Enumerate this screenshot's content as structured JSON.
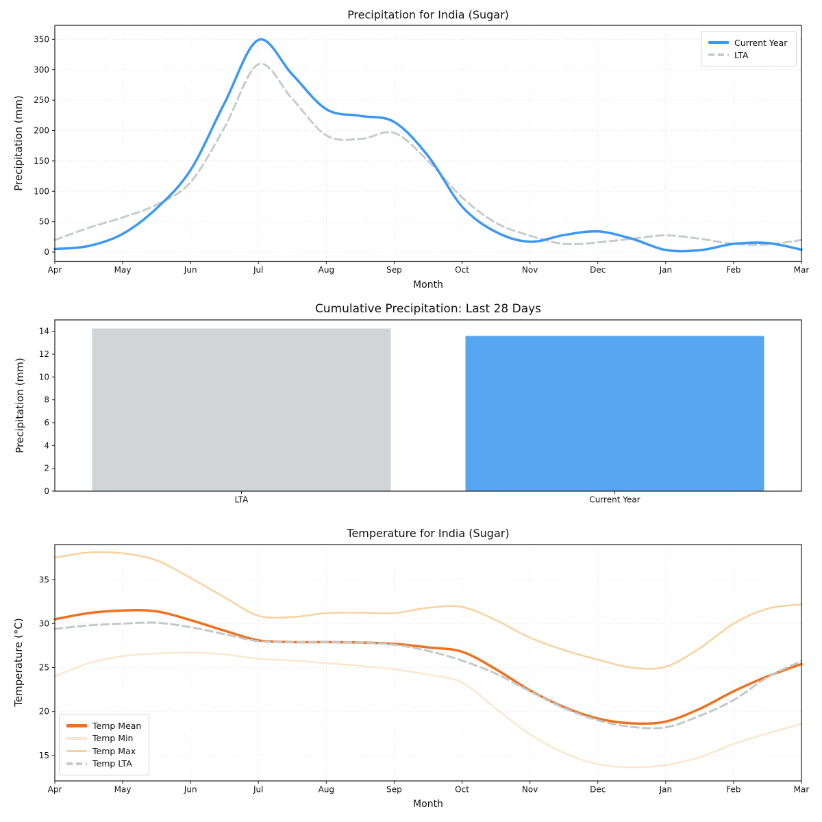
{
  "colors": {
    "current_year": "#3b97f5",
    "lta": "#c6cbcb",
    "bar_lta": "#d1d5d8",
    "bar_current_year": "#58a6f1",
    "temp_mean": "#f1701e",
    "temp_min": "#fbe7cf",
    "temp_max": "#f8d29e",
    "temp_lta": "#c3c8c8",
    "grid": "#dedede",
    "spine": "#1a1a1a",
    "text": "#111111"
  },
  "chart_data": [
    {
      "type": "line",
      "title": "Precipitation for India (Sugar)",
      "xlabel": "Month",
      "ylabel": "Precipitation (mm)",
      "x_ticklabels": [
        "Apr",
        "May",
        "Jun",
        "Jul",
        "Aug",
        "Sep",
        "Oct",
        "Nov",
        "Dec",
        "Jan",
        "Feb",
        "Mar"
      ],
      "yticks": [
        0,
        50,
        100,
        150,
        200,
        250,
        300,
        350
      ],
      "ylim": [
        -15.2,
        373
      ],
      "xlim": [
        0,
        11
      ],
      "grid": true,
      "legend_position": "top-right",
      "x": [
        0,
        0.5,
        1,
        1.5,
        2,
        2.5,
        3,
        3.5,
        4,
        4.5,
        5,
        5.5,
        6,
        6.5,
        7,
        7.5,
        8,
        8.5,
        9,
        9.5,
        10,
        10.5,
        11
      ],
      "series": [
        {
          "name": "Current Year",
          "color_key": "current_year",
          "style": "solid",
          "width": 3.5,
          "z": 2,
          "values": [
            5,
            10,
            30,
            72,
            135,
            245,
            349,
            292,
            235,
            224,
            214,
            158,
            75,
            33,
            17,
            28,
            34,
            22,
            3.5,
            3,
            13.5,
            15,
            4
          ]
        },
        {
          "name": "LTA",
          "color_key": "lta",
          "style": "dashed",
          "width": 3,
          "z": 1,
          "values": [
            20,
            40,
            57,
            78,
            115,
            205,
            309,
            252,
            192,
            186,
            196,
            150,
            90,
            48,
            27,
            13.5,
            16,
            22,
            27.5,
            22,
            13.5,
            12.5,
            20
          ]
        }
      ]
    },
    {
      "type": "bar",
      "title": "Cumulative Precipitation: Last 28 Days",
      "ylabel": "Precipitation (mm)",
      "categories": [
        "LTA",
        "Current Year"
      ],
      "values": [
        14.25,
        13.6
      ],
      "bar_color_keys": [
        "bar_lta",
        "bar_current_year"
      ],
      "yticks": [
        0,
        2,
        4,
        6,
        8,
        10,
        12,
        14
      ],
      "ylim": [
        0,
        15
      ],
      "grid": false
    },
    {
      "type": "line",
      "title": "Temperature for India (Sugar)",
      "xlabel": "Month",
      "ylabel": "Temperature (°C)",
      "x_ticklabels": [
        "Apr",
        "May",
        "Jun",
        "Jul",
        "Aug",
        "Sep",
        "Oct",
        "Nov",
        "Dec",
        "Jan",
        "Feb",
        "Mar"
      ],
      "yticks": [
        15,
        20,
        25,
        30,
        35
      ],
      "ylim": [
        12.1,
        39.0
      ],
      "xlim": [
        0,
        11
      ],
      "grid": true,
      "legend_position": "bottom-left",
      "x": [
        0,
        0.5,
        1,
        1.5,
        2,
        2.5,
        3,
        3.5,
        4,
        4.5,
        5,
        5.5,
        6,
        6.5,
        7,
        7.5,
        8,
        8.5,
        9,
        9.5,
        10,
        10.5,
        11
      ],
      "series": [
        {
          "name": "Temp Mean",
          "color_key": "temp_mean",
          "style": "solid",
          "width": 3.5,
          "z": 3,
          "values": [
            30.5,
            31.2,
            31.5,
            31.4,
            30.4,
            29.2,
            28.1,
            27.9,
            27.9,
            27.85,
            27.7,
            27.3,
            26.8,
            24.8,
            22.4,
            20.5,
            19.2,
            18.65,
            18.85,
            20.3,
            22.3,
            24.0,
            25.4
          ]
        },
        {
          "name": "Temp Min",
          "color_key": "temp_min",
          "style": "solid",
          "width": 2.5,
          "z": 1,
          "values": [
            24.0,
            25.5,
            26.3,
            26.6,
            26.7,
            26.5,
            26.0,
            25.8,
            25.5,
            25.2,
            24.8,
            24.2,
            23.3,
            20.3,
            17.4,
            15.3,
            14.0,
            13.65,
            13.9,
            14.8,
            16.3,
            17.5,
            18.6
          ]
        },
        {
          "name": "Temp Max",
          "color_key": "temp_max",
          "style": "solid",
          "width": 2.5,
          "z": 2,
          "values": [
            37.5,
            38.1,
            38.0,
            37.2,
            35.2,
            33.0,
            30.9,
            30.75,
            31.2,
            31.25,
            31.2,
            31.8,
            31.9,
            30.4,
            28.4,
            27.0,
            25.9,
            25.0,
            25.1,
            27.2,
            30.0,
            31.7,
            32.2
          ]
        },
        {
          "name": "Temp LTA",
          "color_key": "temp_lta",
          "style": "dashed",
          "width": 3,
          "z": 4,
          "values": [
            29.4,
            29.8,
            30.0,
            30.1,
            29.6,
            28.8,
            28.0,
            27.9,
            27.9,
            27.85,
            27.6,
            26.9,
            25.8,
            24.3,
            22.3,
            20.4,
            19.0,
            18.25,
            18.2,
            19.5,
            21.3,
            23.9,
            25.75
          ]
        }
      ]
    }
  ]
}
